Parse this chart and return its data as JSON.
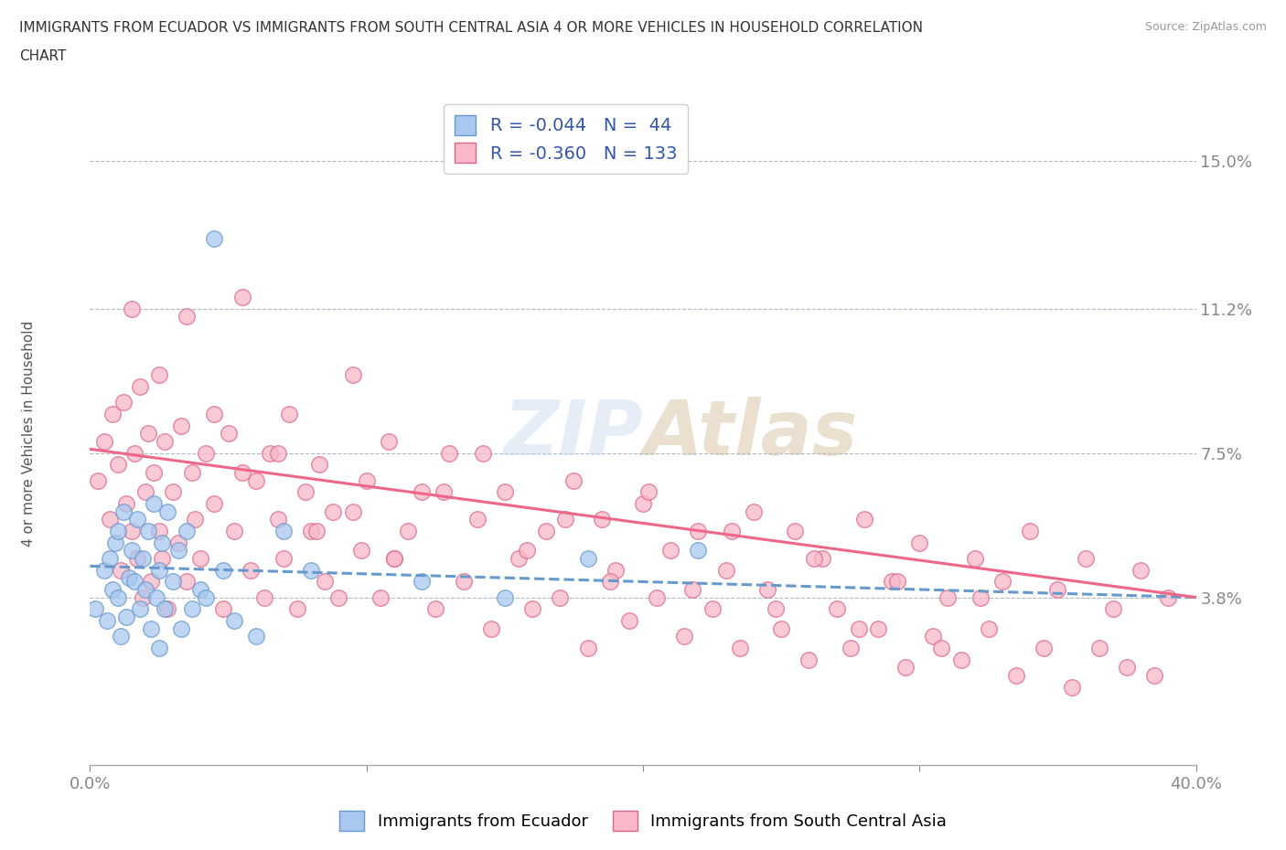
{
  "title_line1": "IMMIGRANTS FROM ECUADOR VS IMMIGRANTS FROM SOUTH CENTRAL ASIA 4 OR MORE VEHICLES IN HOUSEHOLD CORRELATION",
  "title_line2": "CHART",
  "source": "Source: ZipAtlas.com",
  "ylabel": "4 or more Vehicles in Household",
  "xlim": [
    0.0,
    0.4
  ],
  "ylim": [
    -0.005,
    0.165
  ],
  "ytick_positions": [
    0.038,
    0.075,
    0.112,
    0.15
  ],
  "ytick_labels": [
    "3.8%",
    "7.5%",
    "11.2%",
    "15.0%"
  ],
  "hlines": [
    0.038,
    0.075,
    0.112,
    0.15
  ],
  "ecuador_color": "#a8c8f0",
  "ecuador_edge": "#6699cc",
  "south_asia_color": "#f8b8c8",
  "south_asia_edge": "#dd6688",
  "ecuador_R": -0.044,
  "ecuador_N": 44,
  "south_asia_R": -0.36,
  "south_asia_N": 133,
  "ecuador_line_color": "#6699cc",
  "south_asia_line_color": "#ee6688",
  "legend_label_ecuador": "Immigrants from Ecuador",
  "legend_label_south_asia": "Immigrants from South Central Asia",
  "watermark": "ZIPAtlas",
  "ecuador_x": [
    0.002,
    0.005,
    0.006,
    0.007,
    0.008,
    0.009,
    0.01,
    0.01,
    0.011,
    0.012,
    0.013,
    0.014,
    0.015,
    0.016,
    0.017,
    0.018,
    0.019,
    0.02,
    0.021,
    0.022,
    0.023,
    0.024,
    0.025,
    0.025,
    0.026,
    0.027,
    0.028,
    0.03,
    0.032,
    0.033,
    0.035,
    0.037,
    0.04,
    0.042,
    0.045,
    0.048,
    0.052,
    0.06,
    0.07,
    0.08,
    0.12,
    0.15,
    0.18,
    0.22
  ],
  "ecuador_y": [
    0.035,
    0.045,
    0.032,
    0.048,
    0.04,
    0.052,
    0.038,
    0.055,
    0.028,
    0.06,
    0.033,
    0.043,
    0.05,
    0.042,
    0.058,
    0.035,
    0.048,
    0.04,
    0.055,
    0.03,
    0.062,
    0.038,
    0.045,
    0.025,
    0.052,
    0.035,
    0.06,
    0.042,
    0.05,
    0.03,
    0.055,
    0.035,
    0.04,
    0.038,
    0.13,
    0.045,
    0.032,
    0.028,
    0.055,
    0.045,
    0.042,
    0.038,
    0.048,
    0.05
  ],
  "south_asia_x": [
    0.003,
    0.005,
    0.007,
    0.008,
    0.01,
    0.011,
    0.012,
    0.013,
    0.015,
    0.016,
    0.017,
    0.018,
    0.019,
    0.02,
    0.021,
    0.022,
    0.023,
    0.025,
    0.026,
    0.027,
    0.028,
    0.03,
    0.032,
    0.033,
    0.035,
    0.037,
    0.038,
    0.04,
    0.042,
    0.045,
    0.048,
    0.05,
    0.052,
    0.055,
    0.058,
    0.06,
    0.063,
    0.065,
    0.068,
    0.07,
    0.072,
    0.075,
    0.078,
    0.08,
    0.083,
    0.085,
    0.088,
    0.09,
    0.095,
    0.098,
    0.1,
    0.105,
    0.108,
    0.11,
    0.115,
    0.12,
    0.125,
    0.13,
    0.135,
    0.14,
    0.145,
    0.15,
    0.155,
    0.16,
    0.165,
    0.17,
    0.175,
    0.18,
    0.185,
    0.19,
    0.195,
    0.2,
    0.205,
    0.21,
    0.215,
    0.22,
    0.225,
    0.23,
    0.235,
    0.24,
    0.245,
    0.25,
    0.255,
    0.26,
    0.265,
    0.27,
    0.275,
    0.28,
    0.285,
    0.29,
    0.295,
    0.3,
    0.305,
    0.31,
    0.315,
    0.32,
    0.325,
    0.33,
    0.335,
    0.34,
    0.345,
    0.35,
    0.355,
    0.36,
    0.365,
    0.37,
    0.375,
    0.38,
    0.385,
    0.39,
    0.015,
    0.025,
    0.035,
    0.045,
    0.055,
    0.068,
    0.082,
    0.095,
    0.11,
    0.128,
    0.142,
    0.158,
    0.172,
    0.188,
    0.202,
    0.218,
    0.232,
    0.248,
    0.262,
    0.278,
    0.292,
    0.308,
    0.322
  ],
  "south_asia_y": [
    0.068,
    0.078,
    0.058,
    0.085,
    0.072,
    0.045,
    0.088,
    0.062,
    0.055,
    0.075,
    0.048,
    0.092,
    0.038,
    0.065,
    0.08,
    0.042,
    0.07,
    0.055,
    0.048,
    0.078,
    0.035,
    0.065,
    0.052,
    0.082,
    0.042,
    0.07,
    0.058,
    0.048,
    0.075,
    0.062,
    0.035,
    0.08,
    0.055,
    0.115,
    0.045,
    0.068,
    0.038,
    0.075,
    0.058,
    0.048,
    0.085,
    0.035,
    0.065,
    0.055,
    0.072,
    0.042,
    0.06,
    0.038,
    0.095,
    0.05,
    0.068,
    0.038,
    0.078,
    0.048,
    0.055,
    0.065,
    0.035,
    0.075,
    0.042,
    0.058,
    0.03,
    0.065,
    0.048,
    0.035,
    0.055,
    0.038,
    0.068,
    0.025,
    0.058,
    0.045,
    0.032,
    0.062,
    0.038,
    0.05,
    0.028,
    0.055,
    0.035,
    0.045,
    0.025,
    0.06,
    0.04,
    0.03,
    0.055,
    0.022,
    0.048,
    0.035,
    0.025,
    0.058,
    0.03,
    0.042,
    0.02,
    0.052,
    0.028,
    0.038,
    0.022,
    0.048,
    0.03,
    0.042,
    0.018,
    0.055,
    0.025,
    0.04,
    0.015,
    0.048,
    0.025,
    0.035,
    0.02,
    0.045,
    0.018,
    0.038,
    0.112,
    0.095,
    0.11,
    0.085,
    0.07,
    0.075,
    0.055,
    0.06,
    0.048,
    0.065,
    0.075,
    0.05,
    0.058,
    0.042,
    0.065,
    0.04,
    0.055,
    0.035,
    0.048,
    0.03,
    0.042,
    0.025,
    0.038
  ]
}
